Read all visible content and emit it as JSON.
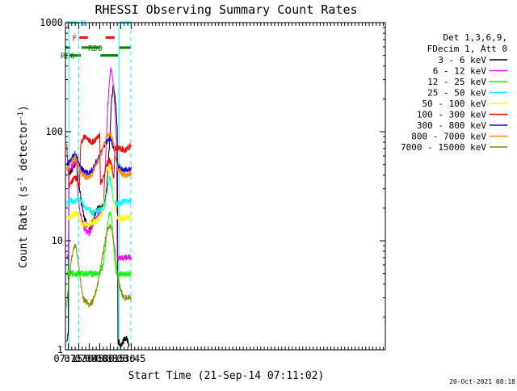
{
  "chart_data": {
    "type": "line",
    "title": "RHESSI Observing Summary Count Rates",
    "xlabel": "Start Time (21-Sep-14 07:11:02)",
    "ylabel_main": "Count Rate (s",
    "ylabel_sup": "-1",
    "ylabel_mid": " detector",
    "ylabel_end": ")",
    "footer": "20-Oct-2021 08:18",
    "yscale": "log",
    "xlim": [
      431,
      888
    ],
    "ylim": [
      1,
      1000
    ],
    "x_ticks": [
      {
        "label": "07:15",
        "value": 435
      },
      {
        "label": "07:30",
        "value": 450
      },
      {
        "label": "07:45",
        "value": 465
      },
      {
        "label": "08:00",
        "value": 480
      },
      {
        "label": "08:15",
        "value": 495
      },
      {
        "label": "08:30",
        "value": 510
      },
      {
        "label": "08:45",
        "value": 525
      }
    ],
    "y_ticks": [
      {
        "label": "1",
        "value": 1
      },
      {
        "label": "10",
        "value": 10
      },
      {
        "label": "100",
        "value": 100
      },
      {
        "label": "1000",
        "value": 1000
      }
    ],
    "legend_header": [
      "Det 1,3,6,9,",
      "FDecim 1, Att 0"
    ],
    "legend_position": "right",
    "series": [
      {
        "name": "3 - 6 keV",
        "color": "#000000",
        "points": [
          [
            433,
            1.2
          ],
          [
            435,
            1.5
          ],
          [
            436,
            40
          ],
          [
            440,
            45
          ],
          [
            445,
            50
          ],
          [
            447,
            60
          ],
          [
            449,
            35
          ],
          [
            451,
            30
          ],
          [
            454,
            22
          ],
          [
            458,
            16
          ],
          [
            462,
            14
          ],
          [
            466,
            13
          ],
          [
            470,
            15
          ],
          [
            474,
            18
          ],
          [
            478,
            20
          ],
          [
            482,
            20
          ],
          [
            486,
            21
          ],
          [
            490,
            30
          ],
          [
            494,
            80
          ],
          [
            497,
            200
          ],
          [
            499,
            260
          ],
          [
            501,
            230
          ],
          [
            503,
            180
          ],
          [
            505,
            110
          ],
          [
            506,
            1.2
          ],
          [
            510,
            1.1
          ],
          [
            514,
            1.2
          ],
          [
            518,
            1.3
          ],
          [
            522,
            1.1
          ]
        ]
      },
      {
        "name": "6 - 12 keV",
        "color": "#ff00ff",
        "points": [
          [
            433,
            7
          ],
          [
            435,
            7
          ],
          [
            436,
            45
          ],
          [
            440,
            48
          ],
          [
            445,
            52
          ],
          [
            447,
            55
          ],
          [
            449,
            25
          ],
          [
            451,
            20
          ],
          [
            454,
            16
          ],
          [
            458,
            13
          ],
          [
            462,
            12
          ],
          [
            466,
            12
          ],
          [
            470,
            14
          ],
          [
            474,
            16
          ],
          [
            478,
            18
          ],
          [
            482,
            18
          ],
          [
            485,
            20
          ],
          [
            488,
            50
          ],
          [
            491,
            150
          ],
          [
            494,
            300
          ],
          [
            496,
            390
          ],
          [
            498,
            320
          ],
          [
            500,
            240
          ],
          [
            502,
            150
          ],
          [
            504,
            80
          ],
          [
            505,
            7
          ],
          [
            510,
            7
          ],
          [
            515,
            7
          ],
          [
            520,
            7
          ],
          [
            525,
            7
          ]
        ]
      },
      {
        "name": "12 - 25 keV",
        "color": "#00ff00",
        "points": [
          [
            433,
            5
          ],
          [
            436,
            5
          ],
          [
            440,
            5
          ],
          [
            445,
            5
          ],
          [
            450,
            5
          ],
          [
            455,
            5
          ],
          [
            460,
            5
          ],
          [
            465,
            5
          ],
          [
            470,
            5
          ],
          [
            475,
            5
          ],
          [
            480,
            5
          ],
          [
            485,
            6
          ],
          [
            488,
            9
          ],
          [
            491,
            14
          ],
          [
            494,
            18
          ],
          [
            496,
            17
          ],
          [
            498,
            13
          ],
          [
            500,
            9
          ],
          [
            502,
            6
          ],
          [
            504,
            5
          ],
          [
            508,
            5
          ],
          [
            512,
            5
          ],
          [
            516,
            5
          ],
          [
            520,
            5
          ],
          [
            525,
            5
          ]
        ]
      },
      {
        "name": "25 - 50 keV",
        "color": "#00ffff",
        "points": [
          [
            433,
            22
          ],
          [
            436,
            23
          ],
          [
            440,
            23
          ],
          [
            445,
            23
          ],
          [
            450,
            24
          ],
          [
            453,
            24
          ],
          [
            456,
            22
          ],
          [
            460,
            20
          ],
          [
            465,
            19
          ],
          [
            470,
            18
          ],
          [
            475,
            19
          ],
          [
            480,
            19
          ],
          [
            485,
            20
          ],
          [
            488,
            22
          ],
          [
            491,
            30
          ],
          [
            494,
            38
          ],
          [
            496,
            34
          ],
          [
            498,
            28
          ],
          [
            500,
            22
          ],
          [
            502,
            22
          ],
          [
            506,
            22
          ],
          [
            510,
            22
          ],
          [
            515,
            23
          ],
          [
            520,
            23
          ],
          [
            525,
            23
          ]
        ]
      },
      {
        "name": "50 - 100 keV",
        "color": "#ffff00",
        "points": [
          [
            433,
            16
          ],
          [
            436,
            16
          ],
          [
            440,
            17
          ],
          [
            445,
            18
          ],
          [
            450,
            17
          ],
          [
            452,
            15
          ],
          [
            455,
            14
          ],
          [
            460,
            14
          ],
          [
            465,
            14
          ],
          [
            470,
            15
          ],
          [
            475,
            15
          ],
          [
            480,
            16
          ],
          [
            484,
            18
          ],
          [
            488,
            28
          ],
          [
            491,
            45
          ],
          [
            494,
            48
          ],
          [
            496,
            44
          ],
          [
            498,
            34
          ],
          [
            500,
            24
          ],
          [
            503,
            18
          ],
          [
            506,
            16
          ],
          [
            510,
            16
          ],
          [
            515,
            16
          ],
          [
            520,
            16
          ],
          [
            525,
            16
          ]
        ]
      },
      {
        "name": "100 - 300 keV",
        "color": "#ff0000",
        "points": [
          [
            433,
            75
          ],
          [
            436,
            32
          ],
          [
            440,
            35
          ],
          [
            445,
            38
          ],
          [
            448,
            36
          ],
          [
            451,
            33
          ],
          [
            453,
            80
          ],
          [
            458,
            90
          ],
          [
            463,
            85
          ],
          [
            468,
            80
          ],
          [
            473,
            82
          ],
          [
            478,
            90
          ],
          [
            480,
            100
          ],
          [
            481,
            33
          ],
          [
            485,
            37
          ],
          [
            490,
            50
          ],
          [
            494,
            55
          ],
          [
            496,
            52
          ],
          [
            498,
            45
          ],
          [
            500,
            38
          ],
          [
            502,
            70
          ],
          [
            506,
            72
          ],
          [
            510,
            70
          ],
          [
            515,
            68
          ],
          [
            520,
            70
          ],
          [
            525,
            75
          ]
        ]
      },
      {
        "name": "300 - 800 keV",
        "color": "#0000ff",
        "points": [
          [
            433,
            50
          ],
          [
            436,
            52
          ],
          [
            440,
            58
          ],
          [
            445,
            62
          ],
          [
            450,
            52
          ],
          [
            455,
            45
          ],
          [
            460,
            42
          ],
          [
            465,
            42
          ],
          [
            470,
            45
          ],
          [
            475,
            52
          ],
          [
            480,
            60
          ],
          [
            485,
            72
          ],
          [
            490,
            82
          ],
          [
            494,
            88
          ],
          [
            496,
            85
          ],
          [
            498,
            78
          ],
          [
            500,
            68
          ],
          [
            503,
            55
          ],
          [
            506,
            48
          ],
          [
            510,
            46
          ],
          [
            515,
            45
          ],
          [
            520,
            45
          ],
          [
            525,
            46
          ]
        ]
      },
      {
        "name": "800 - 7000 keV",
        "color": "#ff8800",
        "points": [
          [
            433,
            45
          ],
          [
            436,
            48
          ],
          [
            440,
            55
          ],
          [
            445,
            58
          ],
          [
            450,
            48
          ],
          [
            455,
            40
          ],
          [
            460,
            38
          ],
          [
            465,
            38
          ],
          [
            470,
            42
          ],
          [
            475,
            50
          ],
          [
            480,
            58
          ],
          [
            485,
            72
          ],
          [
            490,
            90
          ],
          [
            494,
            97
          ],
          [
            496,
            95
          ],
          [
            498,
            88
          ],
          [
            500,
            75
          ],
          [
            503,
            55
          ],
          [
            506,
            45
          ],
          [
            510,
            42
          ],
          [
            515,
            40
          ],
          [
            520,
            40
          ],
          [
            525,
            42
          ]
        ]
      },
      {
        "name": "7000 - 15000 keV",
        "color": "#888800",
        "points": [
          [
            433,
            2.5
          ],
          [
            436,
            4.5
          ],
          [
            440,
            7
          ],
          [
            443,
            8.5
          ],
          [
            445,
            9
          ],
          [
            447,
            8
          ],
          [
            450,
            6
          ],
          [
            453,
            4
          ],
          [
            456,
            3
          ],
          [
            460,
            2.8
          ],
          [
            465,
            2.6
          ],
          [
            470,
            2.8
          ],
          [
            475,
            3.5
          ],
          [
            480,
            5
          ],
          [
            485,
            8
          ],
          [
            490,
            12
          ],
          [
            494,
            14
          ],
          [
            497,
            13
          ],
          [
            500,
            10
          ],
          [
            503,
            7
          ],
          [
            506,
            4.5
          ],
          [
            510,
            3.5
          ],
          [
            515,
            3
          ],
          [
            520,
            3
          ],
          [
            525,
            3
          ]
        ]
      }
    ],
    "vlines": [
      {
        "x": 436.0,
        "style": "solid"
      },
      {
        "x": 450.0,
        "style": "dashed"
      },
      {
        "x": 507.5,
        "style": "solid"
      },
      {
        "x": 524.5,
        "style": "dashed"
      }
    ],
    "flags": [
      {
        "label": "N",
        "color": "#00ffff",
        "y": 1000,
        "segments": [
          [
            432,
            449
          ],
          [
            508.5,
            525
          ]
        ]
      },
      {
        "label": "F",
        "color": "#ff0000",
        "y": 730,
        "segments": [
          [
            451,
            463
          ],
          [
            488.5,
            501
          ]
        ]
      },
      {
        "label": "RD0",
        "color": "#007f00",
        "y": 590,
        "segments": [
          [
            431,
            438
          ],
          [
            454,
            481
          ],
          [
            507,
            525
          ]
        ]
      },
      {
        "label": "RD6",
        "color": "#007f00",
        "y": 500,
        "segments": [
          [
            436,
            453
          ],
          [
            481,
            506
          ]
        ]
      }
    ]
  }
}
